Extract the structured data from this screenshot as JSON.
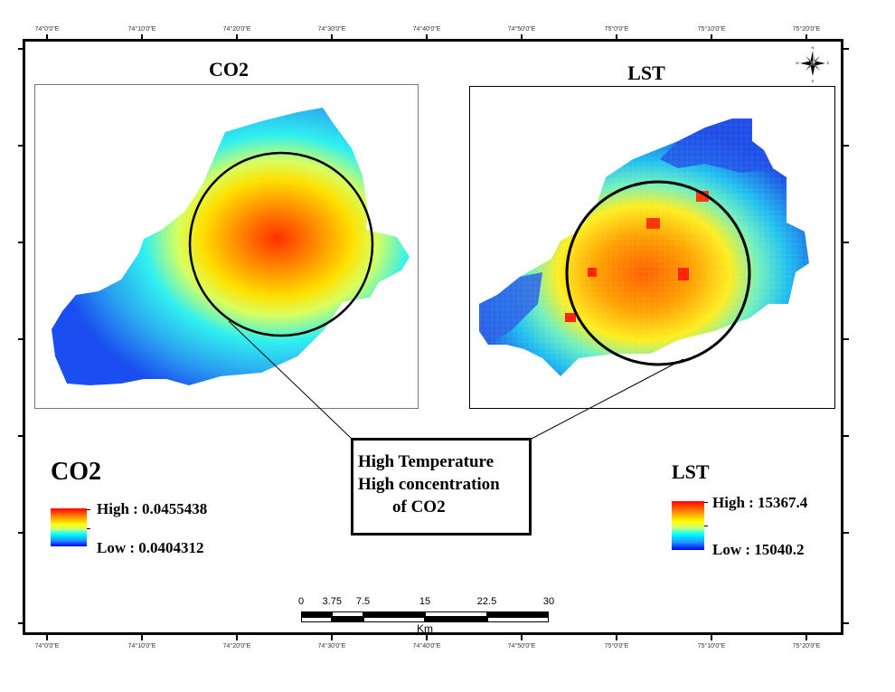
{
  "graticule": {
    "longitude_labels": [
      "74°0'0\"E",
      "74°10'0\"E",
      "74°20'0\"E",
      "74°30'0\"E",
      "74°40'0\"E",
      "74°50'0\"E",
      "75°0'0\"E",
      "75°10'0\"E",
      "75°20'0\"E"
    ]
  },
  "maps": {
    "co2": {
      "title": "CO2"
    },
    "lst": {
      "title": "LST"
    }
  },
  "legends": {
    "co2": {
      "title": "CO2",
      "high_label": "High : 0.0455438",
      "low_label": "Low : 0.0404312",
      "high_value": 0.0455438,
      "low_value": 0.0404312
    },
    "lst": {
      "title": "LST",
      "high_label": "High : 15367.4",
      "low_label": "Low : 15040.2",
      "high_value": 15367.4,
      "low_value": 15040.2
    }
  },
  "colors": {
    "high": "#ff0000",
    "mid": "#ffff00",
    "low": "#0000ff",
    "cyan": "#00ffff"
  },
  "callout": {
    "lines": [
      "High Temperature",
      "High concentration",
      "of CO2"
    ]
  },
  "north_arrow": {
    "n": "N",
    "s": "S",
    "e": "E",
    "w": "W"
  },
  "scale_bar": {
    "ticks": [
      "0",
      "3.75",
      "7.5",
      "15",
      "22.5",
      "30"
    ],
    "unit": "Km"
  }
}
